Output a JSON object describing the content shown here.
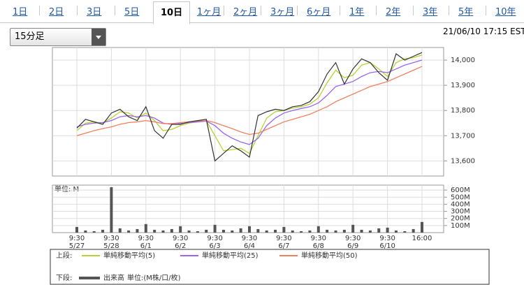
{
  "tabs": [
    "1日",
    "2日",
    "3日",
    "5日",
    "10日",
    "1ヶ月",
    "2ヶ月",
    "3ヶ月",
    "6ヶ月",
    "1年",
    "2年",
    "3年",
    "5年",
    "10年"
  ],
  "selected_tab": 4,
  "interval_select": "15分足",
  "timestamp": "21/06/10 17:15 EST",
  "legend": {
    "upper_label": "上段:",
    "lower_label": "下段:",
    "volume_unit": "単位:(M株/口/枚)"
  },
  "chart_data": [
    {
      "type": "line",
      "categories": [
        "9:30",
        null,
        null,
        null,
        "9:30",
        null,
        null,
        null,
        "9:30",
        null,
        null,
        null,
        "9:30",
        null,
        null,
        null,
        "9:30",
        null,
        null,
        null,
        "9:30",
        null,
        null,
        null,
        "9:30",
        null,
        null,
        null,
        "9:30",
        null,
        null,
        null,
        "9:30",
        null,
        null,
        null,
        "9:30",
        null,
        null,
        null,
        "16:00"
      ],
      "dates": [
        "5/27",
        null,
        null,
        null,
        "5/28",
        null,
        null,
        null,
        "6/1",
        null,
        null,
        null,
        "6/2",
        null,
        null,
        null,
        "6/3",
        null,
        null,
        null,
        "6/4",
        null,
        null,
        null,
        "6/7",
        null,
        null,
        null,
        "6/8",
        null,
        null,
        null,
        "6/9",
        null,
        null,
        null,
        "6/10",
        null,
        null,
        null,
        null
      ],
      "values": [
        13730,
        13765,
        13755,
        13745,
        13790,
        13805,
        13775,
        13760,
        13815,
        13720,
        13690,
        13745,
        13745,
        13755,
        13760,
        13765,
        13600,
        13630,
        13660,
        13640,
        13615,
        13780,
        13795,
        13805,
        13800,
        13815,
        13820,
        13835,
        13875,
        13945,
        13990,
        13905,
        13965,
        14005,
        13990,
        13950,
        13920,
        14025,
        14000,
        14015,
        14030
      ],
      "color": "#333333",
      "series": [
        {
          "name": "単純移動平均(5)",
          "color": "#b5d334",
          "values": [
            13720,
            13750,
            13755,
            13750,
            13770,
            13795,
            13790,
            13770,
            13790,
            13760,
            13720,
            13725,
            13740,
            13750,
            13755,
            13760,
            13700,
            13640,
            13645,
            13650,
            13630,
            13700,
            13770,
            13795,
            13800,
            13810,
            13815,
            13825,
            13850,
            13910,
            13960,
            13930,
            13940,
            13980,
            13990,
            13965,
            13935,
            13990,
            14005,
            14010,
            14020
          ]
        },
        {
          "name": "単純移動平均(25)",
          "color": "#9966ee",
          "values": [
            13735,
            13745,
            13750,
            13752,
            13760,
            13775,
            13780,
            13775,
            13780,
            13770,
            13750,
            13745,
            13748,
            13752,
            13755,
            13758,
            13740,
            13710,
            13690,
            13675,
            13665,
            13690,
            13740,
            13770,
            13790,
            13800,
            13808,
            13815,
            13830,
            13860,
            13895,
            13905,
            13915,
            13935,
            13950,
            13955,
            13950,
            13965,
            13980,
            13990,
            14000
          ]
        },
        {
          "name": "単純移動平均(50)",
          "color": "#f08060",
          "values": [
            13700,
            13710,
            13720,
            13728,
            13735,
            13745,
            13752,
            13755,
            13760,
            13755,
            13748,
            13748,
            13752,
            13755,
            13758,
            13760,
            13752,
            13740,
            13728,
            13715,
            13705,
            13710,
            13725,
            13740,
            13755,
            13765,
            13775,
            13785,
            13800,
            13815,
            13835,
            13850,
            13865,
            13880,
            13895,
            13905,
            13915,
            13930,
            13945,
            13960,
            13975
          ]
        }
      ],
      "ylim": [
        13540,
        14050
      ],
      "yticks": [
        {
          "value": 13600,
          "label": "13,600"
        },
        {
          "value": 13700,
          "label": "13,700"
        },
        {
          "value": 13800,
          "label": "13,800"
        },
        {
          "value": 13900,
          "label": "13,900"
        },
        {
          "value": 14000,
          "label": "14,000"
        }
      ],
      "grid": true
    },
    {
      "type": "bar",
      "name": "出来高",
      "unit_label": "単位: M",
      "values": [
        80,
        30,
        20,
        40,
        640,
        60,
        30,
        50,
        120,
        40,
        30,
        50,
        90,
        30,
        20,
        40,
        110,
        40,
        30,
        60,
        90,
        50,
        30,
        40,
        80,
        30,
        20,
        30,
        90,
        40,
        30,
        40,
        110,
        40,
        30,
        60,
        70,
        30,
        20,
        50,
        150
      ],
      "color": "#555555",
      "ylim": [
        0,
        670
      ],
      "yticks": [
        {
          "value": 100,
          "label": "100M"
        },
        {
          "value": 200,
          "label": "200M"
        },
        {
          "value": 300,
          "label": "300M"
        },
        {
          "value": 400,
          "label": "400M"
        },
        {
          "value": 500,
          "label": "500M"
        },
        {
          "value": 600,
          "label": "600M"
        }
      ],
      "grid": true
    }
  ]
}
